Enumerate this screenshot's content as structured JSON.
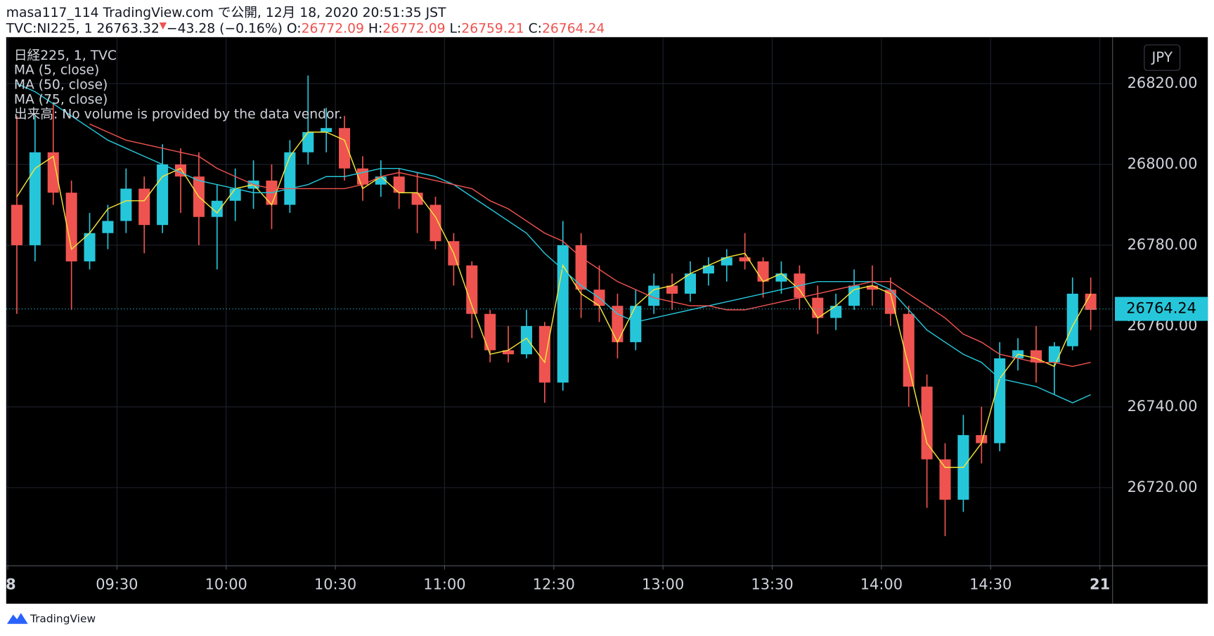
{
  "header": {
    "line1": "masa117_114 TradingView.com で公開, 12月 18, 2020 20:51:35 JST",
    "symbol": "TVC:NI225, 1",
    "last": "26763.32",
    "arrow": "▼",
    "change": "−43.28 (−0.16%)",
    "o_label": "O:",
    "o": "26772.09",
    "h_label": "H:",
    "h": "26772.09",
    "l_label": "L:",
    "l": "26759.21",
    "c_label": "C:",
    "c": "26764.24"
  },
  "footer": {
    "brand": "TradingView"
  },
  "chart_data": {
    "type": "candlestick",
    "title": "日経225, 1, TVC",
    "volume_note": "出来高: No volume is provided by the data vendor.",
    "currency": "JPY",
    "up_color": "#26c6da",
    "down_color": "#ef5350",
    "grid": true,
    "last_price": {
      "value": 26764.24,
      "label": "26764.24"
    },
    "xlim": [
      0,
      60.7
    ],
    "ylim": [
      26700.65,
      26831.5
    ],
    "xticks": [
      {
        "value": 0,
        "label": "8"
      },
      {
        "value": 6,
        "label": "09:30"
      },
      {
        "value": 12,
        "label": "10:00"
      },
      {
        "value": 18,
        "label": "10:30"
      },
      {
        "value": 24,
        "label": "11:00"
      },
      {
        "value": 30,
        "label": "12:30"
      },
      {
        "value": 36,
        "label": "13:00"
      },
      {
        "value": 42,
        "label": "13:30"
      },
      {
        "value": 48,
        "label": "14:00"
      },
      {
        "value": 54,
        "label": "14:30"
      },
      {
        "value": 60,
        "label": "21"
      }
    ],
    "yticks": [
      {
        "value": 26720,
        "label": "26720.00"
      },
      {
        "value": 26740,
        "label": "26740.00"
      },
      {
        "value": 26760,
        "label": "26760.00"
      },
      {
        "value": 26780,
        "label": "26780.00"
      },
      {
        "value": 26800,
        "label": "26800.00"
      },
      {
        "value": 26820,
        "label": "26820.00"
      }
    ],
    "x": [
      0.5,
      1.5,
      2.5,
      3.5,
      4.5,
      5.5,
      6.5,
      7.5,
      8.5,
      9.5,
      10.5,
      11.5,
      12.5,
      13.5,
      14.5,
      15.5,
      16.5,
      17.5,
      18.5,
      19.5,
      20.5,
      21.5,
      22.5,
      23.5,
      24.5,
      25.5,
      26.5,
      27.5,
      28.5,
      29.5,
      30.5,
      31.5,
      32.5,
      33.5,
      34.5,
      35.5,
      36.5,
      37.5,
      38.5,
      39.5,
      40.5,
      41.5,
      42.5,
      43.5,
      44.5,
      45.5,
      46.5,
      47.5,
      48.5,
      49.5,
      50.5,
      51.5,
      52.5,
      53.5,
      54.5,
      55.5,
      56.5,
      57.5,
      58.5,
      59.5
    ],
    "open": [
      26790,
      26780,
      26803,
      26793,
      26776,
      26783,
      26786,
      26794,
      26785,
      26800,
      26797,
      26787,
      26791,
      26794,
      26796,
      26790,
      26803,
      26808,
      26809,
      26799,
      26795,
      26797,
      26793,
      26790,
      26781,
      26775,
      26763,
      26754,
      26753,
      26760,
      26746,
      26780,
      26769,
      26765,
      26756,
      26765,
      26770,
      26768,
      26773,
      26775,
      26777,
      26776,
      26771,
      26773,
      26767,
      26762,
      26765,
      26770,
      26769,
      26763,
      26745,
      26727,
      26717,
      26733,
      26731,
      26752,
      26754,
      26751,
      26755,
      26768
    ],
    "high": [
      26812,
      26812,
      26815,
      26796,
      26788,
      26790,
      26799,
      26797,
      26805,
      26804,
      26803,
      26795,
      26799,
      26801,
      26800,
      26806,
      26822,
      26814,
      26812,
      26802,
      26801,
      26799,
      26798,
      26792,
      26783,
      26776,
      26764,
      26760,
      26764,
      26761,
      26786,
      26783,
      26775,
      26768,
      26769,
      26773,
      26773,
      26776,
      26777,
      26779,
      26783,
      26777,
      26776,
      26775,
      26770,
      26768,
      26774,
      26775,
      26772,
      26765,
      26748,
      26731,
      26738,
      26740,
      26756,
      26757,
      26760,
      26756,
      26772,
      26772
    ],
    "low": [
      26763,
      26776,
      26790,
      26764,
      26774,
      26779,
      26783,
      26778,
      26783,
      26788,
      26780,
      26774,
      26786,
      26789,
      26784,
      26788,
      26800,
      26803,
      26796,
      26791,
      26792,
      26789,
      26783,
      26779,
      26770,
      26757,
      26751,
      26751,
      26752,
      26741,
      26744,
      26762,
      26761,
      26752,
      26754,
      26763,
      26764,
      26766,
      26770,
      26771,
      26774,
      26767,
      26768,
      26764,
      26758,
      26759,
      26764,
      26765,
      26760,
      26740,
      26715,
      26708,
      26714,
      26726,
      26729,
      26749,
      26746,
      26743,
      26754,
      26759
    ],
    "close": [
      26780,
      26803,
      26793,
      26776,
      26783,
      26786,
      26794,
      26785,
      26800,
      26797,
      26787,
      26791,
      26794,
      26796,
      26790,
      26803,
      26808,
      26809,
      26799,
      26795,
      26797,
      26793,
      26790,
      26781,
      26775,
      26763,
      26754,
      26753,
      26760,
      26746,
      26780,
      26769,
      26765,
      26756,
      26765,
      26770,
      26768,
      26773,
      26775,
      26777,
      26776,
      26771,
      26773,
      26767,
      26762,
      26765,
      26770,
      26769,
      26763,
      26745,
      26727,
      26717,
      26733,
      26731,
      26752,
      26754,
      26751,
      26755,
      26768,
      26764
    ],
    "series": [
      {
        "name": "MA (5, close)",
        "color": "#f5e53b",
        "values": [
          26792,
          26799,
          26802,
          26779,
          26783,
          26789,
          26791,
          26791,
          26797,
          26799,
          26792,
          26788,
          26794,
          26795,
          26790,
          26802,
          26808,
          26808,
          26806,
          26794,
          26797,
          26793,
          26793,
          26787,
          26778,
          26765,
          26753,
          26754,
          26757,
          26751,
          26775,
          26768,
          26765,
          26756,
          26765,
          26769,
          26770,
          26773,
          26775,
          26777,
          26778,
          26771,
          26773,
          26769,
          26762,
          26765,
          26769,
          26770,
          26768,
          26750,
          26731,
          26725,
          26725,
          26731,
          26747,
          26753,
          26752,
          26750,
          26760,
          26768
        ]
      },
      {
        "name": "MA (50, close)",
        "color": "#26c6da",
        "values": [
          26820,
          26818,
          26815,
          26812,
          26809,
          26806,
          26804,
          26802,
          26800,
          26798,
          26796,
          26795,
          26794,
          26793,
          26793,
          26794,
          26795,
          26797,
          26797,
          26798,
          26799,
          26799,
          26798,
          26797,
          26795,
          26792,
          26789,
          26786,
          26783,
          26778,
          26774,
          26770,
          26767,
          26763,
          26761,
          26762,
          26763,
          26764,
          26765,
          26766,
          26767,
          26768,
          26769,
          26770,
          26771,
          26771,
          26771,
          26771,
          26769,
          26764,
          26759,
          26756,
          26753,
          26751,
          26747,
          26746,
          26745,
          26743,
          26741,
          26743
        ]
      },
      {
        "name": "MA (75, close)",
        "color": "#ef5350",
        "values": [
          null,
          null,
          null,
          null,
          26810,
          26808,
          26806,
          26805,
          26804,
          26803,
          26802,
          26799,
          26797,
          26795,
          26794,
          26794,
          26794,
          26794,
          26794,
          26795,
          26797,
          26798,
          26797,
          26796,
          26795,
          26794,
          26791,
          26789,
          26786,
          26783,
          26781,
          26777,
          26774,
          26771,
          26769,
          26767,
          26766,
          26765,
          26765,
          26764,
          26764,
          26765,
          26766,
          26767,
          26768,
          26769,
          26770,
          26771,
          26771,
          26768,
          26765,
          26762,
          26758,
          26756,
          26753,
          26752,
          26751,
          26751,
          26750,
          26751
        ]
      }
    ]
  }
}
